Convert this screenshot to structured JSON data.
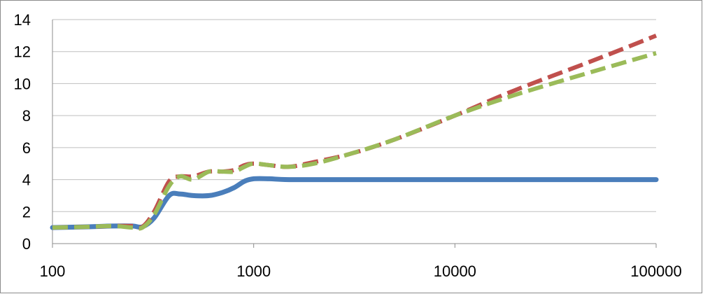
{
  "chart_data": {
    "type": "line",
    "x_scale": "log",
    "xlim": [
      100,
      100000
    ],
    "ylim": [
      0,
      14
    ],
    "grid": "horizontal",
    "legend": "none",
    "x_ticks": [
      "100",
      "1000",
      "10000",
      "100000"
    ],
    "x_tick_values": [
      100,
      1000,
      10000,
      100000
    ],
    "y_ticks": [
      "0",
      "2",
      "4",
      "6",
      "8",
      "10",
      "12",
      "14"
    ],
    "y_tick_values": [
      0,
      2,
      4,
      6,
      8,
      10,
      12,
      14
    ],
    "series": [
      {
        "color": "#4a7ebb",
        "dash": "solid",
        "x": [
          100,
          150,
          200,
          250,
          280,
          320,
          380,
          430,
          500,
          600,
          700,
          800,
          900,
          1000,
          1200,
          1500,
          3000,
          10000,
          100000
        ],
        "y": [
          1.0,
          1.05,
          1.1,
          1.1,
          1.05,
          1.6,
          3.0,
          3.1,
          3.0,
          3.0,
          3.2,
          3.5,
          3.9,
          4.05,
          4.05,
          4.0,
          4.0,
          4.0,
          4.0
        ]
      },
      {
        "color": "#c0504d",
        "dash": "dashed",
        "x": [
          100,
          150,
          200,
          250,
          280,
          320,
          380,
          430,
          500,
          600,
          700,
          800,
          900,
          1000,
          1200,
          1500,
          2000,
          3000,
          5000,
          10000,
          20000,
          50000,
          100000
        ],
        "y": [
          1.0,
          1.05,
          1.1,
          1.1,
          1.05,
          2.0,
          3.9,
          4.2,
          4.2,
          4.5,
          4.5,
          4.6,
          4.9,
          5.0,
          4.9,
          4.8,
          5.1,
          5.6,
          6.5,
          8.0,
          9.6,
          11.5,
          13.0
        ]
      },
      {
        "color": "#9bbb59",
        "dash": "dashed",
        "x": [
          100,
          150,
          200,
          250,
          280,
          320,
          380,
          430,
          500,
          600,
          700,
          800,
          900,
          1000,
          1200,
          1500,
          2000,
          3000,
          5000,
          10000,
          20000,
          50000,
          100000
        ],
        "y": [
          1.0,
          1.05,
          1.1,
          1.0,
          1.0,
          1.8,
          3.6,
          4.2,
          4.0,
          4.5,
          4.5,
          4.5,
          4.8,
          5.0,
          4.9,
          4.8,
          5.0,
          5.6,
          6.5,
          8.0,
          9.3,
          10.8,
          11.9
        ]
      }
    ]
  }
}
